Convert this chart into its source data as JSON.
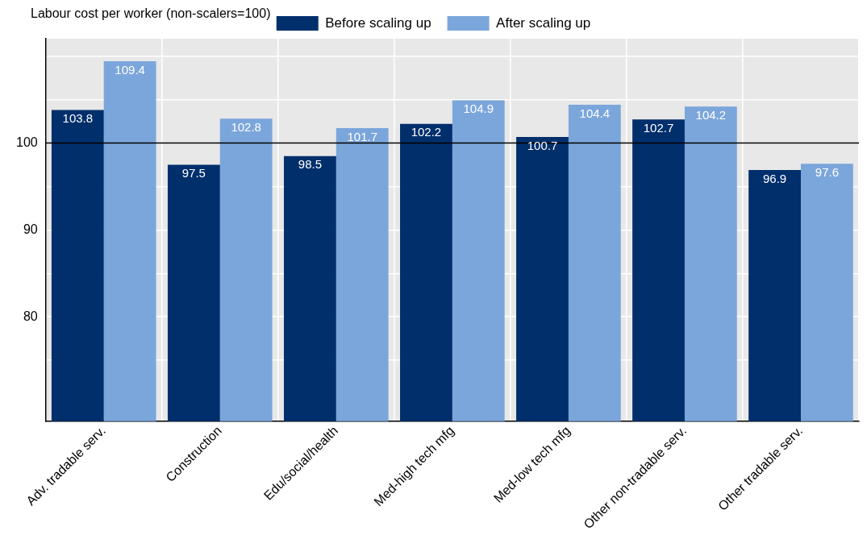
{
  "chart_data": {
    "type": "bar",
    "ylabel": "Labour cost per worker (non-scalers=100)",
    "categories": [
      "Adv. tradable serv.",
      "Construction",
      "Edu/social/health",
      "Med-high tech mfg",
      "Med-low tech mfg",
      "Other non-tradable serv.",
      "Other tradable serv."
    ],
    "series": [
      {
        "name": "Before scaling up",
        "color": "#002f6c",
        "values": [
          103.8,
          97.5,
          98.5,
          102.2,
          100.7,
          102.7,
          96.9
        ]
      },
      {
        "name": "After scaling up",
        "color": "#7ba6db",
        "values": [
          109.4,
          102.8,
          101.7,
          104.9,
          104.4,
          104.2,
          97.6
        ]
      }
    ],
    "ylim": [
      68,
      112
    ],
    "yticks": [
      {
        "value": 75,
        "label": null
      },
      80,
      {
        "value": 85,
        "label": null
      },
      90,
      {
        "value": 95,
        "label": null
      },
      100,
      {
        "value": 105,
        "label": null
      },
      {
        "value": 110,
        "label": null
      }
    ],
    "ref_lines": [
      {
        "axis": "y",
        "value": 100,
        "color": "#000000"
      }
    ],
    "data_labels": true,
    "grid": true,
    "legend": "top"
  }
}
